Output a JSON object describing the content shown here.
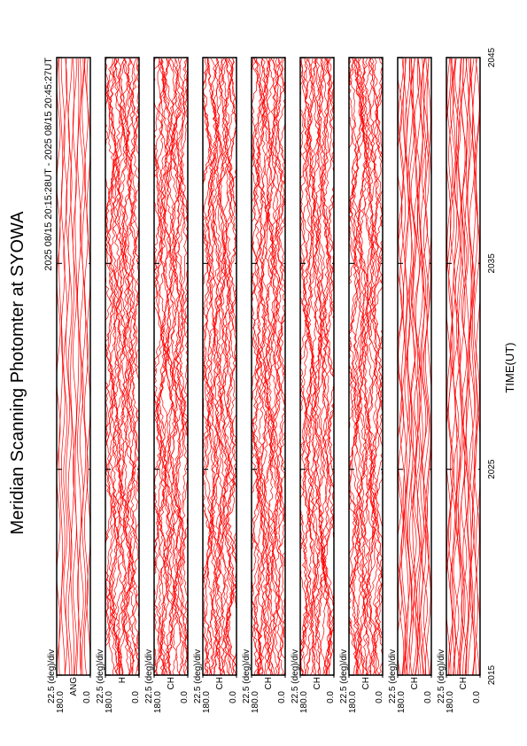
{
  "chart_data": {
    "type": "line",
    "title": "Meridian Scanning Photomter at SYOWA",
    "subtitle": "2025 08/15 20:15:28UT - 2025 08/15 20:45:27UT",
    "x_label": "TIME(UT)",
    "xlim": [
      2015,
      2045
    ],
    "xticks": [
      2015,
      2025,
      2035,
      2045
    ],
    "ylim": [
      0,
      180
    ],
    "yticks": [
      {
        "value": 0,
        "label": "0.0"
      },
      {
        "value": 180,
        "label": "180.0"
      }
    ],
    "scale_label": "22.5 (deg)/div",
    "panels": [
      "ANG",
      "H",
      "CH",
      "CH",
      "CH",
      "CH",
      "CH",
      "CH",
      "CH"
    ],
    "color": "#ff0000"
  }
}
